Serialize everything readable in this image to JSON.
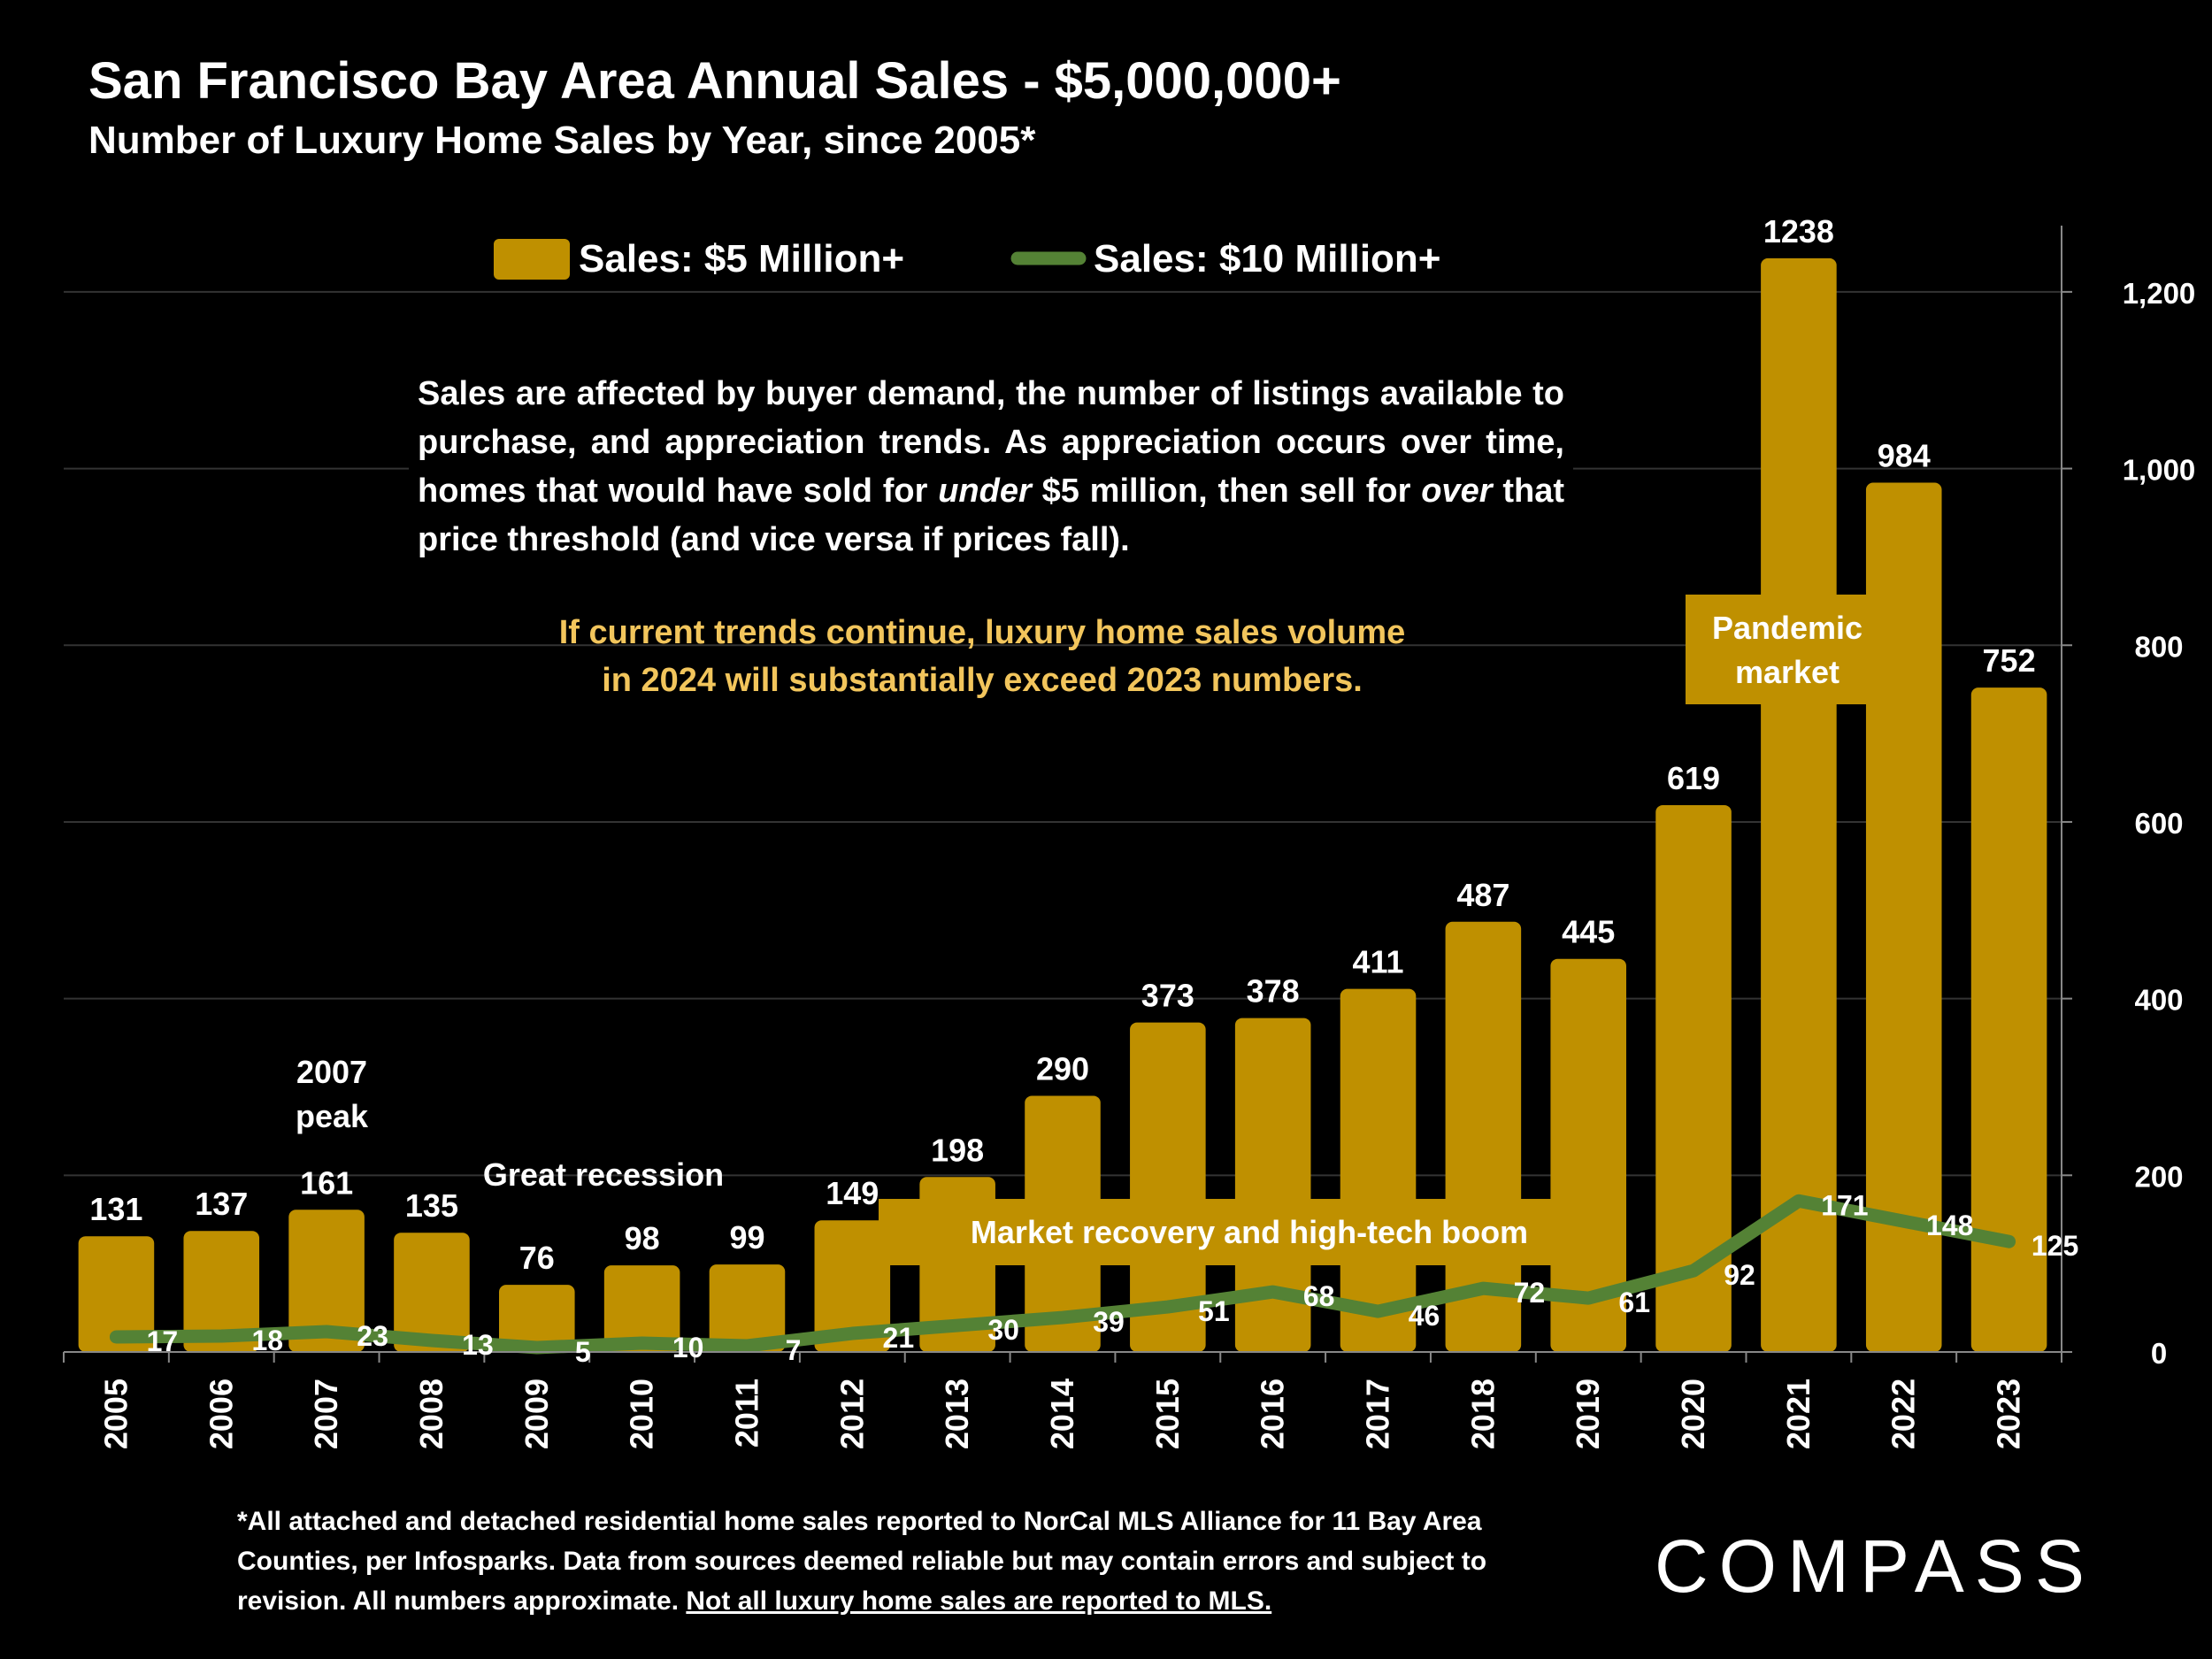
{
  "title": "San Francisco Bay Area Annual Sales - $5,000,000+",
  "subtitle": "Number of Luxury Home Sales by Year, since 2005*",
  "legend": {
    "bar_label": "Sales:  $5 Million+",
    "line_label": "Sales: $10 Million+"
  },
  "note": {
    "p1": "Sales are affected by buyer demand, the number of listings available to purchase, and appreciation trends. As appreciation occurs over time, homes that would have sold for ",
    "p1_em": "under",
    "p2": " $5 million, then sell for ",
    "p2_em": "over",
    "p3": " that price threshold (and vice versa if prices fall).",
    "highlight_line1": "If current trends continue, luxury home sales volume",
    "highlight_line2": "in 2024 will substantially exceed 2023 numbers."
  },
  "annotations": {
    "peak_line1": "2007",
    "peak_line2": "peak",
    "recession": "Great recession",
    "recovery": "Market recovery and high-tech boom",
    "pandemic_line1": "Pandemic",
    "pandemic_line2": "market"
  },
  "footnote": {
    "text": "*All attached and detached residential home sales reported to NorCal MLS Alliance for 11 Bay Area Counties, per Infosparks. Data from sources deemed reliable but may contain errors and subject to revision. All numbers approximate. ",
    "underlined": "Not all luxury home sales are reported to MLS."
  },
  "logo": "COMPASS",
  "colors": {
    "bar": "#bf9000",
    "line": "#548235",
    "highlight": "#f2c55c",
    "background": "#000000"
  },
  "chart_data": {
    "type": "bar",
    "categories": [
      "2005",
      "2006",
      "2007",
      "2008",
      "2009",
      "2010",
      "2011",
      "2012",
      "2013",
      "2014",
      "2015",
      "2016",
      "2017",
      "2018",
      "2019",
      "2020",
      "2021",
      "2022",
      "2023"
    ],
    "series": [
      {
        "name": "Sales:  $5 Million+",
        "type": "bar",
        "values": [
          131,
          137,
          161,
          135,
          76,
          98,
          99,
          149,
          198,
          290,
          373,
          378,
          411,
          487,
          445,
          619,
          1238,
          984,
          752
        ],
        "labels": [
          "131",
          "137",
          "161",
          "135",
          "76",
          "98",
          "99",
          "149",
          "198",
          "290",
          "373",
          "378",
          "411",
          "487",
          "445",
          "619",
          "1238",
          "984",
          "752"
        ]
      },
      {
        "name": "Sales: $10 Million+",
        "type": "line",
        "values": [
          17,
          18,
          23,
          13,
          5,
          10,
          7,
          21,
          30,
          39,
          51,
          68,
          46,
          72,
          61,
          92,
          171,
          148,
          125
        ]
      }
    ],
    "yticks": [
      "0",
      "200",
      "400",
      "600",
      "800",
      "1,000",
      "1,200"
    ],
    "ylim": [
      0,
      1280
    ],
    "y_axis_position": "right",
    "grid": true,
    "legend_position": "top"
  }
}
